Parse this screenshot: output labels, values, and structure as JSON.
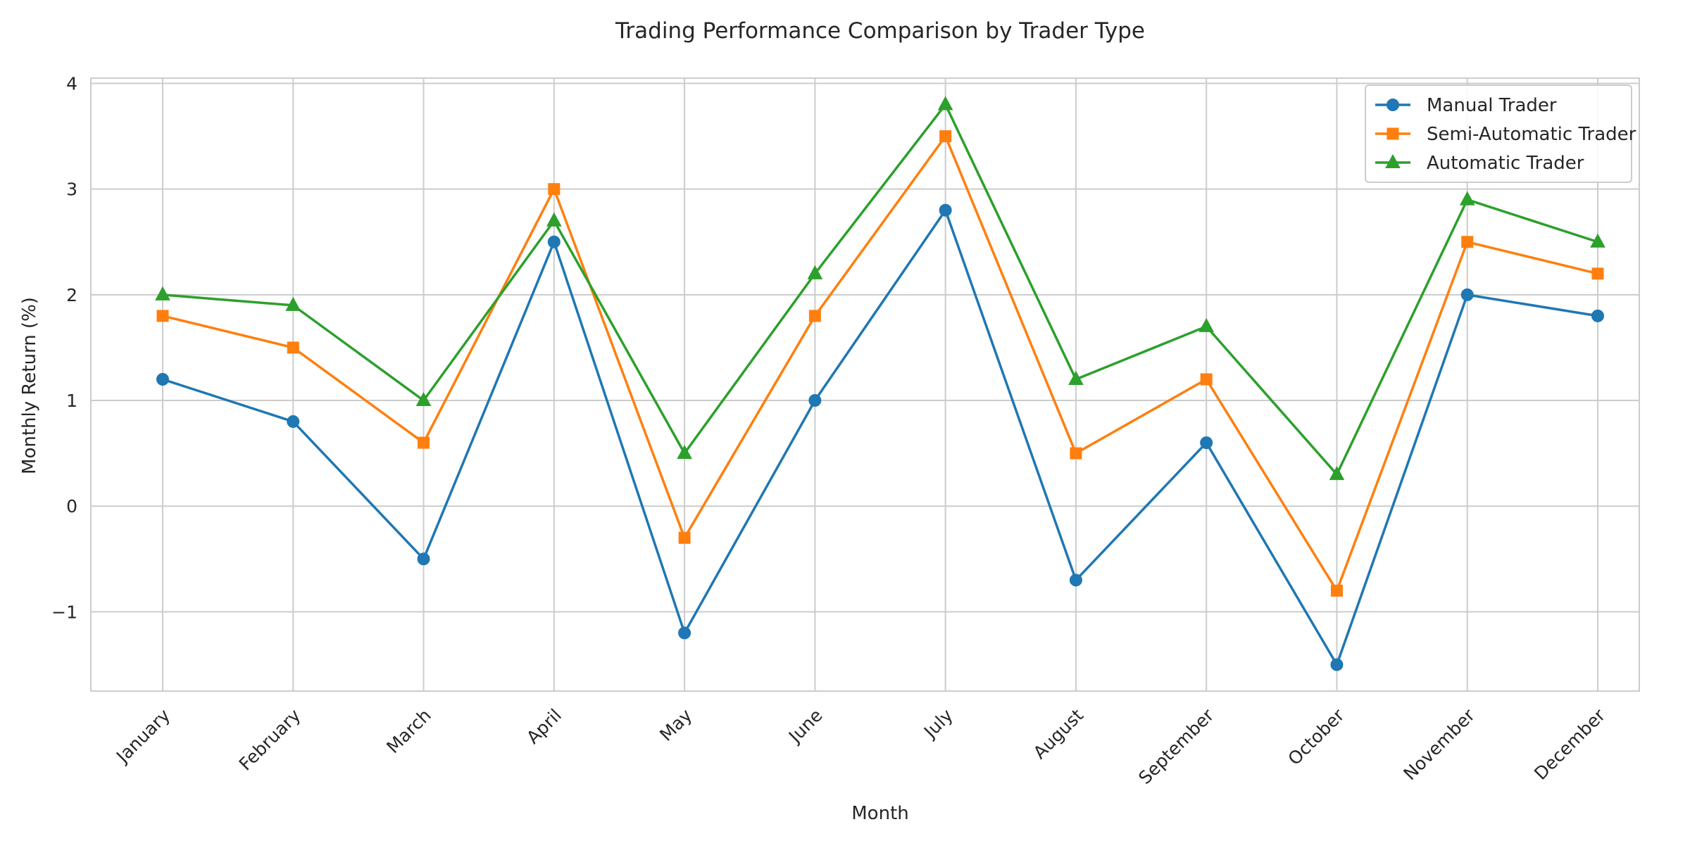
{
  "chart_data": {
    "type": "line",
    "title": "Trading Performance Comparison by Trader Type",
    "xlabel": "Month",
    "ylabel": "Monthly Return (%)",
    "categories": [
      "January",
      "February",
      "March",
      "April",
      "May",
      "June",
      "July",
      "August",
      "September",
      "October",
      "November",
      "December"
    ],
    "ylim": [
      -1.75,
      4.05
    ],
    "yticks": [
      -1,
      0,
      1,
      2,
      3,
      4
    ],
    "ytick_labels": [
      "−1",
      "0",
      "1",
      "2",
      "3",
      "4"
    ],
    "grid": true,
    "legend_position": "top-right",
    "series": [
      {
        "name": "Manual Trader",
        "color": "#1f77b4",
        "marker": "circle",
        "values": [
          1.2,
          0.8,
          -0.5,
          2.5,
          -1.2,
          1.0,
          2.8,
          -0.7,
          0.6,
          -1.5,
          2.0,
          1.8
        ]
      },
      {
        "name": "Semi-Automatic Trader",
        "color": "#ff7f0e",
        "marker": "square",
        "values": [
          1.8,
          1.5,
          0.6,
          3.0,
          -0.3,
          1.8,
          3.5,
          0.5,
          1.2,
          -0.8,
          2.5,
          2.2
        ]
      },
      {
        "name": "Automatic Trader",
        "color": "#2ca02c",
        "marker": "triangle",
        "values": [
          2.0,
          1.9,
          1.0,
          2.7,
          0.5,
          2.2,
          3.8,
          1.2,
          1.7,
          0.3,
          2.9,
          2.5
        ]
      }
    ]
  }
}
